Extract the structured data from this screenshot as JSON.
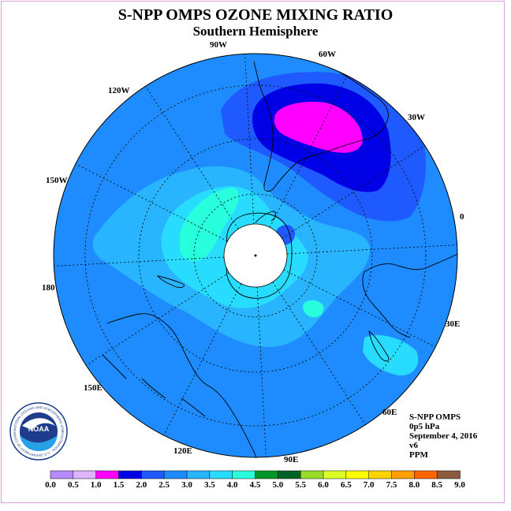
{
  "title": "S-NPP OMPS OZONE MIXING RATIO",
  "subtitle": "Southern Hemisphere",
  "info": {
    "instrument": "S-NPP OMPS",
    "level": "0p5 hPa",
    "date": "September 4, 2016",
    "version": "v6",
    "units": "PPM"
  },
  "map": {
    "projection": "south-polar-stereographic",
    "longitude_labels": [
      "90W",
      "60W",
      "30W",
      "0",
      "30E",
      "60E",
      "90E",
      "120E",
      "150E",
      "180",
      "150W",
      "120W"
    ],
    "ocean_fill_color": "#1e8cff",
    "pole_fill_color": "#ffffff"
  },
  "chart_data": {
    "type": "heatmap",
    "colorbar": {
      "ticks": [
        "0.0",
        "0.5",
        "1.0",
        "1.5",
        "2.0",
        "2.5",
        "3.0",
        "3.5",
        "4.0",
        "4.5",
        "5.0",
        "5.5",
        "6.0",
        "6.5",
        "7.0",
        "7.5",
        "8.0",
        "8.5",
        "9.0"
      ],
      "colors": [
        "#b48cff",
        "#dcb4ff",
        "#ff00ff",
        "#0000e6",
        "#1e5aff",
        "#1e8cff",
        "#28b4ff",
        "#28dcff",
        "#28ffdc",
        "#009628",
        "#006428",
        "#96dc28",
        "#dcff28",
        "#ffff00",
        "#ffd200",
        "#ffa000",
        "#ff6400",
        "#ff0000",
        "#8c5a3c"
      ]
    }
  },
  "logo": {
    "text": "NOAA",
    "ring_text": "NATIONAL OCEANIC AND ATMOSPHERIC ADMINISTRATION · U.S. DEPARTMENT OF COMMERCE"
  }
}
